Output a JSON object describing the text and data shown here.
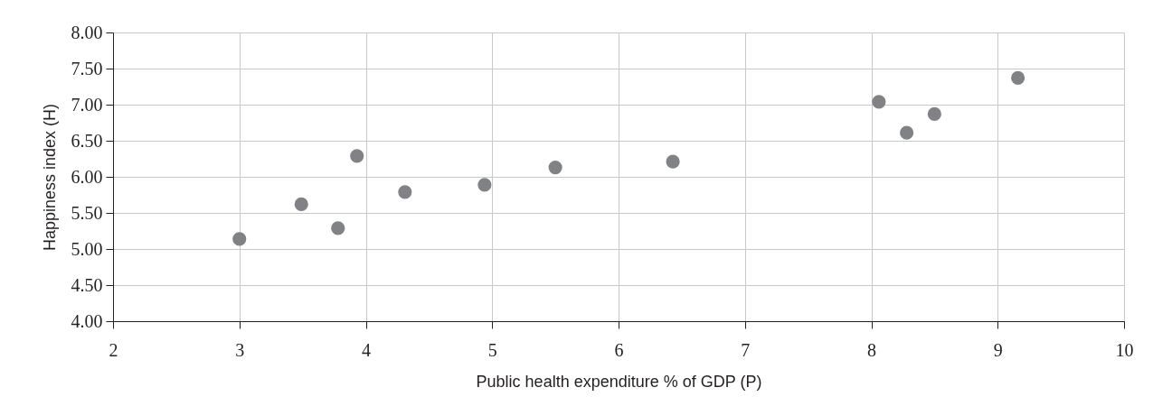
{
  "chart_data": {
    "type": "scatter",
    "xlabel": "Public health expenditure % of GDP (P)",
    "ylabel": "Happiness index (H)",
    "x": [
      3.0,
      3.49,
      3.78,
      3.93,
      4.31,
      4.94,
      5.5,
      6.43,
      8.06,
      8.28,
      8.5,
      9.16
    ],
    "series": [
      {
        "color": "#808285",
        "values": [
          5.14,
          5.62,
          5.29,
          6.29,
          5.79,
          5.89,
          6.13,
          6.21,
          7.04,
          6.61,
          6.87,
          7.37
        ]
      }
    ],
    "xlim": [
      2,
      10
    ],
    "xticks": [
      2,
      3,
      4,
      5,
      6,
      7,
      8,
      9,
      10
    ],
    "ylim": [
      4,
      8
    ],
    "yticks": [
      {
        "value": 4,
        "label": "4.00"
      },
      {
        "value": 4.5,
        "label": "4.50"
      },
      {
        "value": 5,
        "label": "5.00"
      },
      {
        "value": 5.5,
        "label": "5.50"
      },
      {
        "value": 6,
        "label": "6.00"
      },
      {
        "value": 6.5,
        "label": "6.50"
      },
      {
        "value": 7,
        "label": "7.00"
      },
      {
        "value": 7.5,
        "label": "7.50"
      },
      {
        "value": 8,
        "label": "8.00"
      }
    ],
    "grid": true,
    "marker": "circle",
    "legend": false
  }
}
